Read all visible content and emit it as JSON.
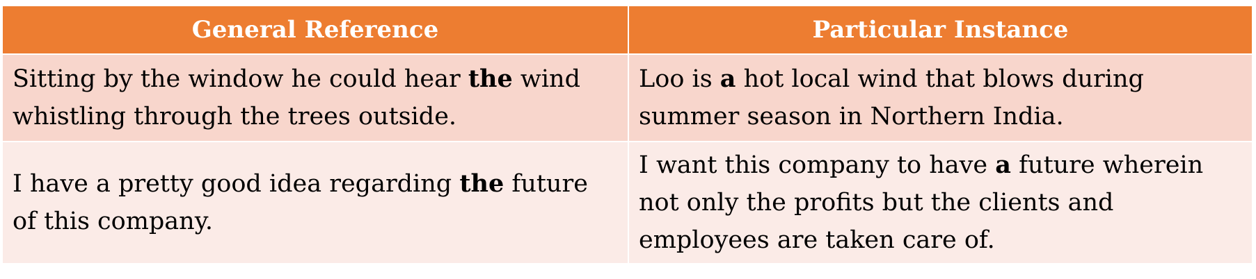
{
  "table": {
    "headers": [
      "General Reference",
      "Particular Instance"
    ],
    "rows": [
      {
        "general": {
          "before": "Sitting by the window he could hear ",
          "emph": "the",
          "after": " wind whistling through the trees outside."
        },
        "particular": {
          "before": "Loo is ",
          "emph": "a",
          "after": " hot local wind that blows during summer season in Northern India."
        }
      },
      {
        "general": {
          "before": "I have a pretty good idea regarding ",
          "emph": "the",
          "after": " future of this company."
        },
        "particular": {
          "before": "I want this company to have ",
          "emph": "a",
          "after": " future wherein not only the profits but the clients and employees are taken care of."
        }
      }
    ],
    "colors": {
      "header_bg": "#ED7D31",
      "row_odd_bg": "#F8D6CC",
      "row_even_bg": "#FBEBE7",
      "header_text": "#FFFFFF"
    }
  }
}
